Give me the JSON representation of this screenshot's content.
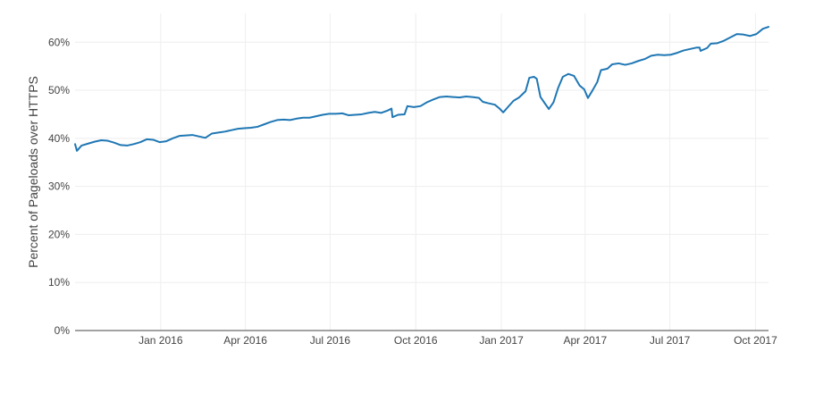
{
  "chart_data": {
    "type": "line",
    "title": "",
    "xlabel": "",
    "ylabel": "Percent of Pageloads over HTTPS",
    "x_range": [
      "2015-10-01",
      "2017-10-15"
    ],
    "ylim": [
      0,
      66
    ],
    "grid": true,
    "legend": "none",
    "x_ticks": [
      {
        "date": "2016-01-01",
        "label": "Jan 2016"
      },
      {
        "date": "2016-04-01",
        "label": "Apr 2016"
      },
      {
        "date": "2016-07-01",
        "label": "Jul 2016"
      },
      {
        "date": "2016-10-01",
        "label": "Oct 2016"
      },
      {
        "date": "2017-01-01",
        "label": "Jan 2017"
      },
      {
        "date": "2017-04-01",
        "label": "Apr 2017"
      },
      {
        "date": "2017-07-01",
        "label": "Jul 2017"
      },
      {
        "date": "2017-10-01",
        "label": "Oct 2017"
      }
    ],
    "y_ticks": [
      {
        "value": 0,
        "label": "0%"
      },
      {
        "value": 10,
        "label": "10%"
      },
      {
        "value": 20,
        "label": "20%"
      },
      {
        "value": 30,
        "label": "30%"
      },
      {
        "value": 40,
        "label": "40%"
      },
      {
        "value": 50,
        "label": "50%"
      },
      {
        "value": 60,
        "label": "60%"
      }
    ],
    "series": [
      {
        "color": "#1f77b4",
        "points": [
          [
            "2015-10-01",
            38.8
          ],
          [
            "2015-10-03",
            37.4
          ],
          [
            "2015-10-08",
            38.5
          ],
          [
            "2015-10-15",
            38.9
          ],
          [
            "2015-10-22",
            39.3
          ],
          [
            "2015-10-29",
            39.6
          ],
          [
            "2015-11-05",
            39.5
          ],
          [
            "2015-11-12",
            39.1
          ],
          [
            "2015-11-19",
            38.6
          ],
          [
            "2015-11-26",
            38.5
          ],
          [
            "2015-12-03",
            38.8
          ],
          [
            "2015-12-10",
            39.2
          ],
          [
            "2015-12-17",
            39.8
          ],
          [
            "2015-12-24",
            39.7
          ],
          [
            "2015-12-31",
            39.2
          ],
          [
            "2016-01-07",
            39.4
          ],
          [
            "2016-01-14",
            40.0
          ],
          [
            "2016-01-21",
            40.5
          ],
          [
            "2016-01-28",
            40.6
          ],
          [
            "2016-02-04",
            40.7
          ],
          [
            "2016-02-11",
            40.4
          ],
          [
            "2016-02-18",
            40.1
          ],
          [
            "2016-02-25",
            41.0
          ],
          [
            "2016-03-03",
            41.2
          ],
          [
            "2016-03-10",
            41.4
          ],
          [
            "2016-03-17",
            41.7
          ],
          [
            "2016-03-24",
            42.0
          ],
          [
            "2016-03-31",
            42.1
          ],
          [
            "2016-04-07",
            42.2
          ],
          [
            "2016-04-14",
            42.4
          ],
          [
            "2016-04-21",
            42.9
          ],
          [
            "2016-04-28",
            43.4
          ],
          [
            "2016-05-05",
            43.8
          ],
          [
            "2016-05-12",
            43.9
          ],
          [
            "2016-05-19",
            43.8
          ],
          [
            "2016-05-26",
            44.1
          ],
          [
            "2016-06-02",
            44.3
          ],
          [
            "2016-06-09",
            44.3
          ],
          [
            "2016-06-16",
            44.6
          ],
          [
            "2016-06-23",
            44.9
          ],
          [
            "2016-06-30",
            45.1
          ],
          [
            "2016-07-07",
            45.1
          ],
          [
            "2016-07-14",
            45.2
          ],
          [
            "2016-07-21",
            44.8
          ],
          [
            "2016-07-28",
            44.9
          ],
          [
            "2016-08-04",
            45.0
          ],
          [
            "2016-08-11",
            45.3
          ],
          [
            "2016-08-18",
            45.5
          ],
          [
            "2016-08-25",
            45.3
          ],
          [
            "2016-09-01",
            45.8
          ],
          [
            "2016-09-05",
            46.2
          ],
          [
            "2016-09-06",
            44.4
          ],
          [
            "2016-09-12",
            44.9
          ],
          [
            "2016-09-19",
            45.0
          ],
          [
            "2016-09-22",
            46.7
          ],
          [
            "2016-09-29",
            46.5
          ],
          [
            "2016-10-06",
            46.7
          ],
          [
            "2016-10-13",
            47.5
          ],
          [
            "2016-10-20",
            48.1
          ],
          [
            "2016-10-27",
            48.6
          ],
          [
            "2016-11-03",
            48.7
          ],
          [
            "2016-11-10",
            48.6
          ],
          [
            "2016-11-17",
            48.5
          ],
          [
            "2016-11-24",
            48.7
          ],
          [
            "2016-12-01",
            48.6
          ],
          [
            "2016-12-08",
            48.4
          ],
          [
            "2016-12-12",
            47.6
          ],
          [
            "2016-12-18",
            47.3
          ],
          [
            "2016-12-25",
            47.0
          ],
          [
            "2016-12-30",
            46.2
          ],
          [
            "2017-01-03",
            45.4
          ],
          [
            "2017-01-08",
            46.5
          ],
          [
            "2017-01-14",
            47.8
          ],
          [
            "2017-01-20",
            48.5
          ],
          [
            "2017-01-27",
            49.8
          ],
          [
            "2017-01-31",
            52.6
          ],
          [
            "2017-02-05",
            52.8
          ],
          [
            "2017-02-08",
            52.4
          ],
          [
            "2017-02-12",
            48.6
          ],
          [
            "2017-02-17",
            47.2
          ],
          [
            "2017-02-21",
            46.1
          ],
          [
            "2017-02-26",
            47.5
          ],
          [
            "2017-03-03",
            50.5
          ],
          [
            "2017-03-08",
            52.8
          ],
          [
            "2017-03-14",
            53.4
          ],
          [
            "2017-03-20",
            53.0
          ],
          [
            "2017-03-26",
            51.0
          ],
          [
            "2017-03-31",
            50.2
          ],
          [
            "2017-04-04",
            48.4
          ],
          [
            "2017-04-09",
            50.0
          ],
          [
            "2017-04-14",
            51.7
          ],
          [
            "2017-04-18",
            54.2
          ],
          [
            "2017-04-25",
            54.5
          ],
          [
            "2017-04-30",
            55.4
          ],
          [
            "2017-05-07",
            55.6
          ],
          [
            "2017-05-14",
            55.3
          ],
          [
            "2017-05-21",
            55.6
          ],
          [
            "2017-05-28",
            56.1
          ],
          [
            "2017-06-04",
            56.5
          ],
          [
            "2017-06-11",
            57.2
          ],
          [
            "2017-06-18",
            57.4
          ],
          [
            "2017-06-25",
            57.3
          ],
          [
            "2017-07-02",
            57.4
          ],
          [
            "2017-07-09",
            57.8
          ],
          [
            "2017-07-16",
            58.3
          ],
          [
            "2017-07-23",
            58.6
          ],
          [
            "2017-07-30",
            58.9
          ],
          [
            "2017-08-02",
            58.9
          ],
          [
            "2017-08-03",
            58.2
          ],
          [
            "2017-08-10",
            58.8
          ],
          [
            "2017-08-14",
            59.7
          ],
          [
            "2017-08-21",
            59.8
          ],
          [
            "2017-08-28",
            60.3
          ],
          [
            "2017-09-04",
            61.0
          ],
          [
            "2017-09-11",
            61.7
          ],
          [
            "2017-09-18",
            61.6
          ],
          [
            "2017-09-25",
            61.3
          ],
          [
            "2017-10-02",
            61.7
          ],
          [
            "2017-10-09",
            62.8
          ],
          [
            "2017-10-15",
            63.2
          ]
        ]
      }
    ]
  }
}
